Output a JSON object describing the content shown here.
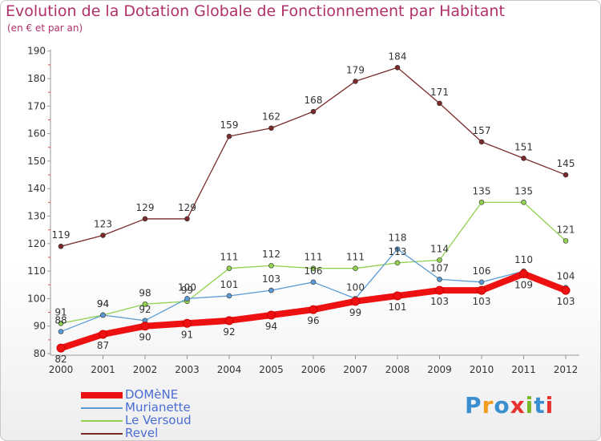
{
  "title": "Evolution de la Dotation Globale de Fonctionnement par Habitant",
  "subtitle": "(en € et par an)",
  "logo": {
    "text": "Proxiti",
    "letter_colors": [
      "#3a8fd0",
      "#f29a1d",
      "#3a8fd0",
      "#e8322e",
      "#7ab828",
      "#3a8fd0",
      "#e8322e"
    ]
  },
  "chart_data": {
    "type": "line",
    "title": "Evolution de la Dotation Globale de Fonctionnement par Habitant",
    "subtitle": "(en € et par an)",
    "x": [
      2000,
      2001,
      2002,
      2003,
      2004,
      2005,
      2006,
      2007,
      2008,
      2009,
      2010,
      2011,
      2012
    ],
    "ylim": [
      80,
      190
    ],
    "yticks": [
      80,
      90,
      100,
      110,
      120,
      130,
      140,
      150,
      160,
      170,
      180,
      190
    ],
    "grid": false,
    "legend_position": "bottom-left",
    "series": [
      {
        "name": "DOMèNE",
        "color": "#ee1111",
        "values": [
          82,
          87,
          90,
          91,
          92,
          94,
          96,
          99,
          101,
          103,
          103,
          109,
          103
        ]
      },
      {
        "name": "Murianette",
        "color": "#5b9bd5",
        "values": [
          88,
          94,
          92,
          100,
          101,
          103,
          106,
          100,
          118,
          107,
          106,
          110,
          104
        ]
      },
      {
        "name": "Le Versoud",
        "color": "#92d050",
        "values": [
          91,
          94,
          98,
          99,
          111,
          112,
          111,
          111,
          113,
          114,
          135,
          135,
          121
        ]
      },
      {
        "name": "Revel",
        "color": "#7a2a2a",
        "values": [
          119,
          123,
          129,
          129,
          159,
          162,
          168,
          179,
          184,
          171,
          157,
          151,
          145
        ]
      }
    ]
  }
}
